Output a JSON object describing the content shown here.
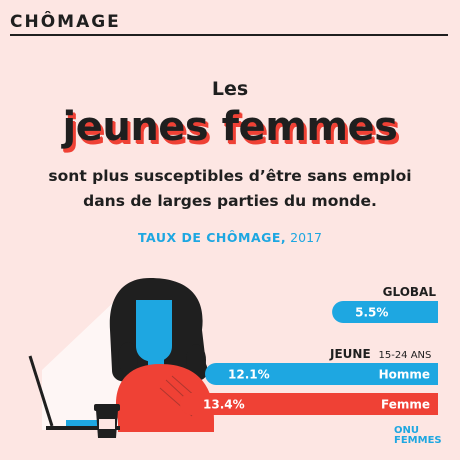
{
  "header": {
    "section_title": "CHÔMAGE"
  },
  "headline": {
    "pre": "Les",
    "main": "jeunes femmes",
    "sub_line1": "sont plus susceptibles d’être sans emploi",
    "sub_line2": "dans de larges parties du monde."
  },
  "chart_data": {
    "type": "bar",
    "orientation": "horizontal",
    "title_strong": "TAUX DE CHÔMAGE,",
    "title_year": "2017",
    "groups": [
      {
        "label": "GLOBAL",
        "sublabel": "",
        "bars": [
          {
            "name": "",
            "value": 5.5,
            "value_label": "5.5%",
            "color": "#1ea7e1"
          }
        ]
      },
      {
        "label": "JEUNE",
        "sublabel": "15-24 ANS",
        "bars": [
          {
            "name": "Homme",
            "value": 12.1,
            "value_label": "12.1%",
            "color": "#1ea7e1"
          },
          {
            "name": "Femme",
            "value": 13.4,
            "value_label": "13.4%",
            "color": "#ef4135"
          }
        ]
      }
    ]
  },
  "colors": {
    "background": "#fde6e3",
    "blue": "#1ea7e1",
    "red": "#ef4135",
    "ink": "#1f1f1f"
  },
  "logo": {
    "line1": "ONU",
    "line2": "FEMMES"
  }
}
